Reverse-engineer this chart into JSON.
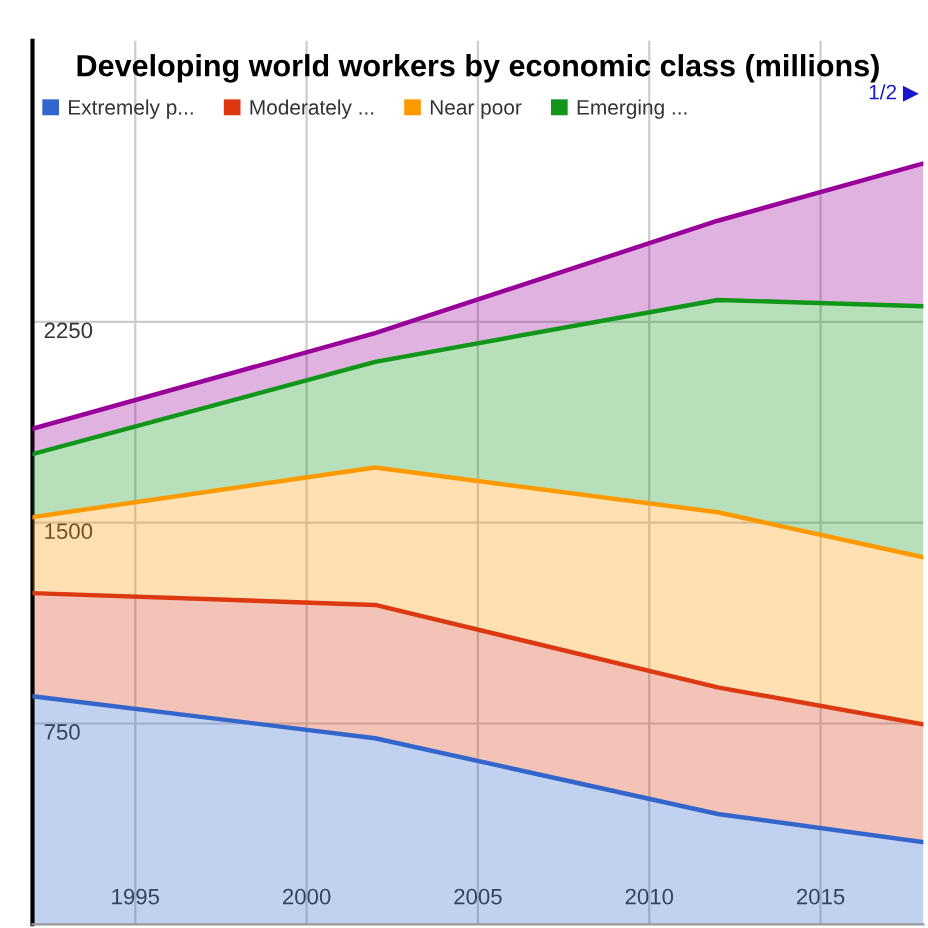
{
  "chart_data": {
    "type": "area",
    "title": "Developing world workers by economic class (millions)",
    "stacked": true,
    "x": [
      1992,
      2002,
      2012,
      2018
    ],
    "series": [
      {
        "name": "Extremely p...",
        "color": "#3366cc",
        "values": [
          852,
          695,
          412,
          307
        ]
      },
      {
        "name": "Moderately ...",
        "color": "#dc3912",
        "values": [
          385,
          498,
          473,
          440
        ]
      },
      {
        "name": "Near poor",
        "color": "#ff9900",
        "values": [
          284,
          513,
          654,
          624
        ]
      },
      {
        "name": "Emerging ...",
        "color": "#109618",
        "values": [
          235,
          395,
          793,
          938
        ]
      },
      {
        "color": "#990099",
        "values": [
          95,
          107,
          296,
          533
        ]
      }
    ],
    "xlim": [
      1992,
      2018
    ],
    "xticks": [
      1995,
      2000,
      2005,
      2010,
      2015
    ],
    "ylim": [
      0,
      3300
    ],
    "yticks": [
      750,
      1500,
      2250
    ],
    "grid": true,
    "legend": "top",
    "annotations": [
      "1/2 ▶"
    ]
  }
}
